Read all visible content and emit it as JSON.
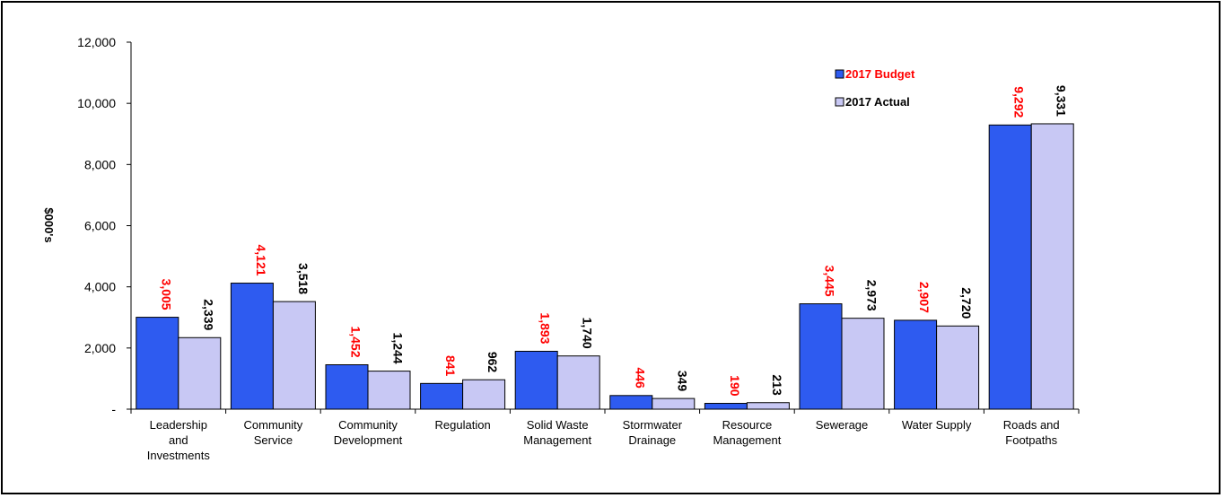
{
  "chart_data": {
    "type": "bar",
    "ylabel": "$000's",
    "ylim": [
      0,
      12000
    ],
    "yticks": [
      {
        "value": 0,
        "label": "-"
      },
      {
        "value": 2000,
        "label": "2,000"
      },
      {
        "value": 4000,
        "label": "4,000"
      },
      {
        "value": 6000,
        "label": "6,000"
      },
      {
        "value": 8000,
        "label": "8,000"
      },
      {
        "value": 10000,
        "label": "10,000"
      },
      {
        "value": 12000,
        "label": "12,000"
      }
    ],
    "grid": false,
    "legend_position": "top-right",
    "categories": [
      [
        "Leadership",
        "and",
        "Investments"
      ],
      [
        "Community",
        "Service"
      ],
      [
        "Community",
        "Development"
      ],
      [
        "Regulation"
      ],
      [
        "Solid Waste",
        "Management"
      ],
      [
        "Stormwater",
        "Drainage"
      ],
      [
        "Resource",
        "Management"
      ],
      [
        "Sewerage"
      ],
      [
        "Water Supply"
      ],
      [
        "Roads and",
        "Footpaths"
      ]
    ],
    "series": [
      {
        "name": "2017 Budget",
        "color": "#2e5bf0",
        "label_color": "#ff0000",
        "values": [
          3005,
          4121,
          1452,
          841,
          1893,
          446,
          190,
          3445,
          2907,
          9292
        ],
        "labels": [
          "3,005",
          "4,121",
          "1,452",
          "841",
          "1,893",
          "446",
          "190",
          "3,445",
          "2,907",
          "9,292"
        ]
      },
      {
        "name": "2017 Actual",
        "color": "#c8c8f4",
        "label_color": "#000000",
        "values": [
          2339,
          3518,
          1244,
          962,
          1740,
          349,
          213,
          2973,
          2720,
          9331
        ],
        "labels": [
          "2,339",
          "3,518",
          "1,244",
          "962",
          "1,740",
          "349",
          "213",
          "2,973",
          "2,720",
          "9,331"
        ]
      }
    ]
  }
}
